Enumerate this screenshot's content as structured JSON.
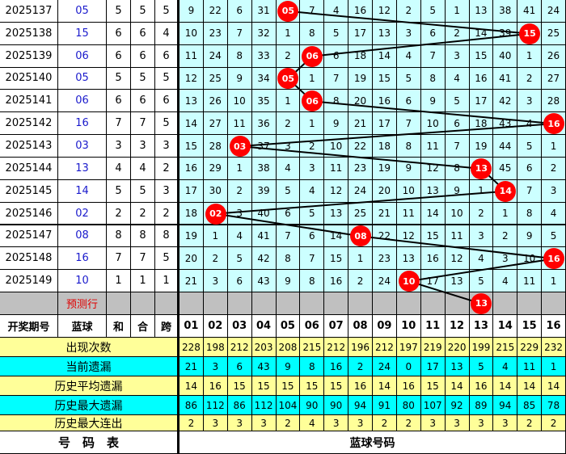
{
  "colors": {
    "ball": "#ff0000",
    "grid_bg": "#ccffff",
    "stat_yellow": "#ffff99",
    "stat_cyan": "#00ffff",
    "predict_bg": "#c0c0c0",
    "blue_text": "#1a1acc"
  },
  "rows": [
    {
      "period": "2025137",
      "blue": "05",
      "he": "5",
      "hewei": "5",
      "kua": "5",
      "cells": [
        "9",
        "22",
        "6",
        "31",
        "05",
        "7",
        "4",
        "16",
        "12",
        "2",
        "5",
        "1",
        "13",
        "38",
        "41",
        "24"
      ],
      "hit": 5
    },
    {
      "period": "2025138",
      "blue": "15",
      "he": "6",
      "hewei": "6",
      "kua": "4",
      "cells": [
        "10",
        "23",
        "7",
        "32",
        "1",
        "8",
        "5",
        "17",
        "13",
        "3",
        "6",
        "2",
        "14",
        "39",
        "15",
        "25"
      ],
      "hit": 15
    },
    {
      "period": "2025139",
      "blue": "06",
      "he": "6",
      "hewei": "6",
      "kua": "6",
      "cells": [
        "11",
        "24",
        "8",
        "33",
        "2",
        "06",
        "6",
        "18",
        "14",
        "4",
        "7",
        "3",
        "15",
        "40",
        "1",
        "26"
      ],
      "hit": 6
    },
    {
      "period": "2025140",
      "blue": "05",
      "he": "5",
      "hewei": "5",
      "kua": "5",
      "cells": [
        "12",
        "25",
        "9",
        "34",
        "05",
        "1",
        "7",
        "19",
        "15",
        "5",
        "8",
        "4",
        "16",
        "41",
        "2",
        "27"
      ],
      "hit": 5
    },
    {
      "period": "2025141",
      "blue": "06",
      "he": "6",
      "hewei": "6",
      "kua": "6",
      "cells": [
        "13",
        "26",
        "10",
        "35",
        "1",
        "06",
        "8",
        "20",
        "16",
        "6",
        "9",
        "5",
        "17",
        "42",
        "3",
        "28"
      ],
      "hit": 6
    },
    {
      "period": "2025142",
      "blue": "16",
      "he": "7",
      "hewei": "7",
      "kua": "5",
      "cells": [
        "14",
        "27",
        "11",
        "36",
        "2",
        "1",
        "9",
        "21",
        "17",
        "7",
        "10",
        "6",
        "18",
        "43",
        "4",
        "16"
      ],
      "hit": 16
    },
    {
      "period": "2025143",
      "blue": "03",
      "he": "3",
      "hewei": "3",
      "kua": "3",
      "cells": [
        "15",
        "28",
        "03",
        "37",
        "3",
        "2",
        "10",
        "22",
        "18",
        "8",
        "11",
        "7",
        "19",
        "44",
        "5",
        "1"
      ],
      "hit": 3
    },
    {
      "period": "2025144",
      "blue": "13",
      "he": "4",
      "hewei": "4",
      "kua": "2",
      "cells": [
        "16",
        "29",
        "1",
        "38",
        "4",
        "3",
        "11",
        "23",
        "19",
        "9",
        "12",
        "8",
        "13",
        "45",
        "6",
        "2"
      ],
      "hit": 13
    },
    {
      "period": "2025145",
      "blue": "14",
      "he": "5",
      "hewei": "5",
      "kua": "3",
      "cells": [
        "17",
        "30",
        "2",
        "39",
        "5",
        "4",
        "12",
        "24",
        "20",
        "10",
        "13",
        "9",
        "1",
        "14",
        "7",
        "3"
      ],
      "hit": 14
    },
    {
      "period": "2025146",
      "blue": "02",
      "he": "2",
      "hewei": "2",
      "kua": "2",
      "cells": [
        "18",
        "02",
        "3",
        "40",
        "6",
        "5",
        "13",
        "25",
        "21",
        "11",
        "14",
        "10",
        "2",
        "1",
        "8",
        "4"
      ],
      "hit": 2
    },
    {
      "period": "2025147",
      "blue": "08",
      "he": "8",
      "hewei": "8",
      "kua": "8",
      "cells": [
        "19",
        "1",
        "4",
        "41",
        "7",
        "6",
        "14",
        "08",
        "22",
        "12",
        "15",
        "11",
        "3",
        "2",
        "9",
        "5"
      ],
      "hit": 8
    },
    {
      "period": "2025148",
      "blue": "16",
      "he": "7",
      "hewei": "7",
      "kua": "5",
      "cells": [
        "20",
        "2",
        "5",
        "42",
        "8",
        "7",
        "15",
        "1",
        "23",
        "13",
        "16",
        "12",
        "4",
        "3",
        "10",
        "16"
      ],
      "hit": 16
    },
    {
      "period": "2025149",
      "blue": "10",
      "he": "1",
      "hewei": "1",
      "kua": "1",
      "cells": [
        "21",
        "3",
        "6",
        "43",
        "9",
        "8",
        "16",
        "2",
        "24",
        "10",
        "17",
        "13",
        "5",
        "4",
        "11",
        "1"
      ],
      "hit": 10
    }
  ],
  "predict": {
    "label": "预测行",
    "ball": "13",
    "hit": 13
  },
  "header": {
    "period": "开奖期号",
    "blue": "蓝球",
    "he": "和",
    "hewei": "合",
    "kua": "跨",
    "numbers": [
      "01",
      "02",
      "03",
      "04",
      "05",
      "06",
      "07",
      "08",
      "09",
      "10",
      "11",
      "12",
      "13",
      "14",
      "15",
      "16"
    ]
  },
  "stats": [
    {
      "label": "出现次数",
      "values": [
        "228",
        "198",
        "212",
        "203",
        "208",
        "215",
        "212",
        "196",
        "212",
        "197",
        "219",
        "220",
        "199",
        "215",
        "229",
        "232"
      ]
    },
    {
      "label": "当前遗漏",
      "values": [
        "21",
        "3",
        "6",
        "43",
        "9",
        "8",
        "16",
        "2",
        "24",
        "0",
        "17",
        "13",
        "5",
        "4",
        "11",
        "1"
      ]
    },
    {
      "label": "历史平均遗漏",
      "values": [
        "14",
        "16",
        "15",
        "15",
        "15",
        "15",
        "15",
        "16",
        "14",
        "16",
        "15",
        "14",
        "16",
        "14",
        "14",
        "14"
      ]
    },
    {
      "label": "历史最大遗漏",
      "values": [
        "86",
        "112",
        "86",
        "112",
        "104",
        "90",
        "90",
        "94",
        "91",
        "80",
        "107",
        "92",
        "89",
        "94",
        "85",
        "78"
      ]
    },
    {
      "label": "历史最大连出",
      "values": [
        "2",
        "3",
        "3",
        "3",
        "2",
        "4",
        "3",
        "3",
        "2",
        "2",
        "3",
        "3",
        "3",
        "3",
        "2",
        "2"
      ]
    }
  ],
  "footer": {
    "left": "号　码　表",
    "right": "蓝球号码"
  }
}
